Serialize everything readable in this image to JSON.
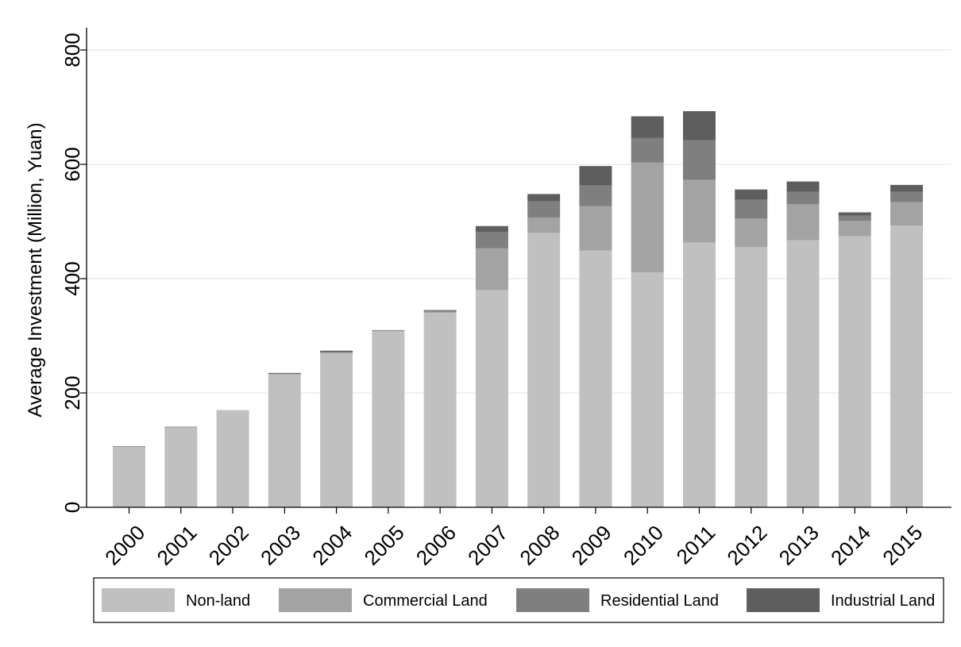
{
  "chart_data": {
    "type": "bar",
    "stacked": true,
    "title": "",
    "xlabel": "",
    "ylabel": "Average Investment (Million, Yuan)",
    "ylim": [
      0,
      800
    ],
    "yticks": [
      0,
      200,
      400,
      600,
      800
    ],
    "grid": true,
    "legend_position": "bottom",
    "categories": [
      "2000",
      "2001",
      "2002",
      "2003",
      "2004",
      "2005",
      "2006",
      "2007",
      "2008",
      "2009",
      "2010",
      "2011",
      "2012",
      "2013",
      "2014",
      "2015"
    ],
    "series": [
      {
        "name": "Non-land",
        "color": "#c0c0c0",
        "values": [
          106,
          140,
          170,
          233,
          270,
          308,
          340,
          380,
          480,
          449,
          411,
          463,
          455,
          467,
          474,
          493
        ]
      },
      {
        "name": "Commercial Land",
        "color": "#a3a3a3",
        "values": [
          0,
          0,
          0,
          0,
          0,
          1,
          2,
          73,
          27,
          78,
          192,
          110,
          50,
          63,
          27,
          41
        ]
      },
      {
        "name": "Residential Land",
        "color": "#7f7f7f",
        "values": [
          1,
          1,
          0,
          1,
          2,
          1,
          2,
          29,
          28,
          36,
          43,
          69,
          33,
          22,
          9,
          18
        ]
      },
      {
        "name": "Industrial Land",
        "color": "#5e5e5e",
        "values": [
          0,
          0,
          0,
          1,
          2,
          0,
          1,
          10,
          13,
          34,
          38,
          51,
          18,
          18,
          6,
          12
        ]
      }
    ]
  }
}
